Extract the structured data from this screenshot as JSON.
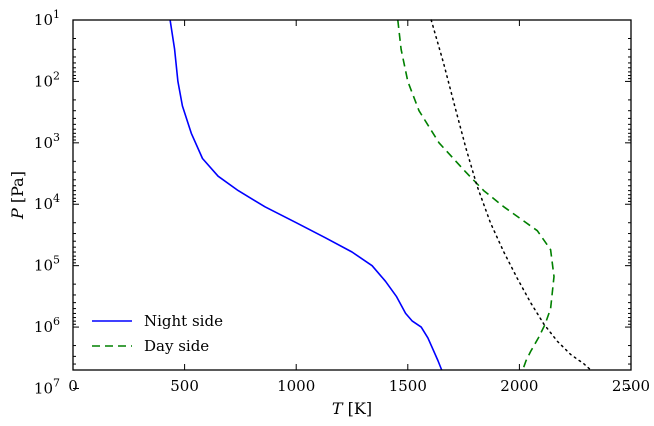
{
  "chart_data": {
    "type": "line",
    "xlabel_symbol": "T",
    "xlabel_unit": "[K]",
    "ylabel_symbol": "P",
    "ylabel_unit": "[Pa]",
    "xlim": [
      0,
      2500
    ],
    "ylim": [
      10,
      5000000
    ],
    "yscale": "log",
    "y_inverted": true,
    "grid": false,
    "legend_position": "lower-left",
    "x_ticks": [
      {
        "value": 0,
        "label": "0"
      },
      {
        "value": 500,
        "label": "500"
      },
      {
        "value": 1000,
        "label": "1000"
      },
      {
        "value": 1500,
        "label": "1500"
      },
      {
        "value": 2000,
        "label": "2000"
      },
      {
        "value": 2500,
        "label": "2500"
      }
    ],
    "y_ticks": [
      {
        "value": 10,
        "base": "10",
        "exp": "1"
      },
      {
        "value": 100,
        "base": "10",
        "exp": "2"
      },
      {
        "value": 1000,
        "base": "10",
        "exp": "3"
      },
      {
        "value": 10000,
        "base": "10",
        "exp": "4"
      },
      {
        "value": 100000,
        "base": "10",
        "exp": "5"
      },
      {
        "value": 1000000,
        "base": "10",
        "exp": "6"
      },
      {
        "value": 10000000,
        "base": "10",
        "exp": "7"
      }
    ],
    "series": [
      {
        "name": "Night side",
        "color": "#0000ff",
        "style": "solid",
        "x": [
          435,
          455,
          470,
          490,
          530,
          580,
          650,
          740,
          860,
          1000,
          1130,
          1250,
          1340,
          1400,
          1450,
          1490,
          1520,
          1560,
          1590,
          1610,
          1635,
          1652
        ],
        "y": [
          10,
          30,
          100,
          250,
          700,
          1800,
          3500,
          6000,
          11000,
          20000,
          35000,
          60000,
          100000,
          180000,
          320000,
          600000,
          800000,
          1000000,
          1500000,
          2200000,
          3500000,
          5000000
        ]
      },
      {
        "name": "Day side",
        "color": "#008000",
        "style": "dashed",
        "x": [
          1455,
          1470,
          1500,
          1550,
          1640,
          1760,
          1840,
          1930,
          2080,
          2140,
          2155,
          2140,
          2115,
          2085,
          2050,
          2030,
          2015
        ],
        "y": [
          10,
          30,
          100,
          300,
          1000,
          3000,
          6000,
          11000,
          27000,
          55000,
          150000,
          500000,
          900000,
          1500000,
          2500000,
          3500000,
          5000000
        ]
      },
      {
        "color": "#000000",
        "style": "dotted",
        "x": [
          1605,
          1660,
          1710,
          1760,
          1810,
          1870,
          1930,
          1990,
          2050,
          2110,
          2170,
          2230,
          2290,
          2320
        ],
        "y": [
          10,
          50,
          250,
          1200,
          5000,
          20000,
          60000,
          160000,
          400000,
          900000,
          1700000,
          2800000,
          4000000,
          5000000
        ]
      }
    ]
  }
}
